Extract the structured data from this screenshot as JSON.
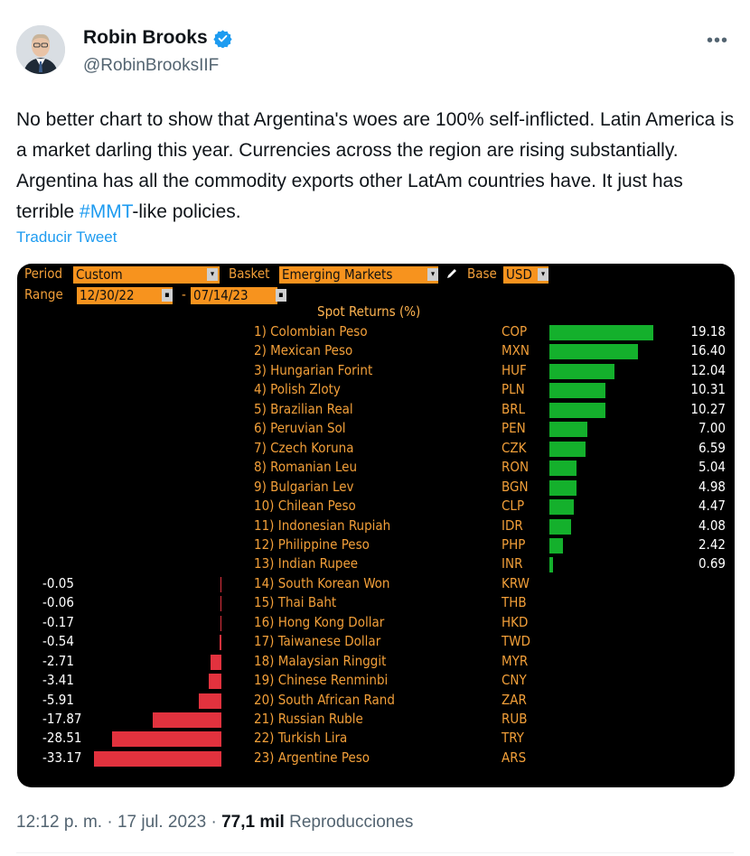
{
  "author": {
    "name": "Robin Brooks",
    "handle": "@RobinBrooksIIF"
  },
  "tweet": {
    "text_before": "No better chart to show that Argentina's woes are 100% self-inflicted. Latin America is a market darling this year. Currencies across the region are rising substantially. Argentina has all the commodity exports other LatAm countries have. It just has terrible ",
    "hashtag": "#MMT",
    "text_after": "-like policies.",
    "translate_label": "Traducir Tweet"
  },
  "terminal": {
    "period_label": "Period",
    "period_value": "Custom",
    "basket_label": "Basket",
    "basket_value": "Emerging Markets",
    "base_label": "Base",
    "base_value": "USD",
    "range_label": "Range",
    "range_start": "12/30/22",
    "range_sep": "-",
    "range_end": "07/14/23"
  },
  "chart_data": {
    "type": "bar",
    "title": "Spot Returns (%)",
    "orientation": "horizontal",
    "rows": [
      {
        "rank": "1)",
        "name": "Colombian Peso",
        "code": "COP",
        "value": 19.18,
        "label": "19.18"
      },
      {
        "rank": "2)",
        "name": "Mexican Peso",
        "code": "MXN",
        "value": 16.4,
        "label": "16.40"
      },
      {
        "rank": "3)",
        "name": "Hungarian Forint",
        "code": "HUF",
        "value": 12.04,
        "label": "12.04"
      },
      {
        "rank": "4)",
        "name": "Polish Zloty",
        "code": "PLN",
        "value": 10.31,
        "label": "10.31"
      },
      {
        "rank": "5)",
        "name": "Brazilian Real",
        "code": "BRL",
        "value": 10.27,
        "label": "10.27"
      },
      {
        "rank": "6)",
        "name": "Peruvian Sol",
        "code": "PEN",
        "value": 7.0,
        "label": "7.00"
      },
      {
        "rank": "7)",
        "name": "Czech Koruna",
        "code": "CZK",
        "value": 6.59,
        "label": "6.59"
      },
      {
        "rank": "8)",
        "name": "Romanian Leu",
        "code": "RON",
        "value": 5.04,
        "label": "5.04"
      },
      {
        "rank": "9)",
        "name": "Bulgarian Lev",
        "code": "BGN",
        "value": 4.98,
        "label": "4.98"
      },
      {
        "rank": "10)",
        "name": "Chilean Peso",
        "code": "CLP",
        "value": 4.47,
        "label": "4.47"
      },
      {
        "rank": "11)",
        "name": "Indonesian Rupiah",
        "code": "IDR",
        "value": 4.08,
        "label": "4.08"
      },
      {
        "rank": "12)",
        "name": "Philippine Peso",
        "code": "PHP",
        "value": 2.42,
        "label": "2.42"
      },
      {
        "rank": "13)",
        "name": "Indian Rupee",
        "code": "INR",
        "value": 0.69,
        "label": "0.69"
      },
      {
        "rank": "14)",
        "name": "South Korean Won",
        "code": "KRW",
        "value": -0.05,
        "label": "-0.05"
      },
      {
        "rank": "15)",
        "name": "Thai Baht",
        "code": "THB",
        "value": -0.06,
        "label": "-0.06"
      },
      {
        "rank": "16)",
        "name": "Hong Kong Dollar",
        "code": "HKD",
        "value": -0.17,
        "label": "-0.17"
      },
      {
        "rank": "17)",
        "name": "Taiwanese Dollar",
        "code": "TWD",
        "value": -0.54,
        "label": "-0.54"
      },
      {
        "rank": "18)",
        "name": "Malaysian Ringgit",
        "code": "MYR",
        "value": -2.71,
        "label": "-2.71"
      },
      {
        "rank": "19)",
        "name": "Chinese Renminbi",
        "code": "CNY",
        "value": -3.41,
        "label": "-3.41"
      },
      {
        "rank": "20)",
        "name": "South African Rand",
        "code": "ZAR",
        "value": -5.91,
        "label": "-5.91"
      },
      {
        "rank": "21)",
        "name": "Russian Ruble",
        "code": "RUB",
        "value": -17.87,
        "label": "-17.87"
      },
      {
        "rank": "22)",
        "name": "Turkish Lira",
        "code": "TRY",
        "value": -28.51,
        "label": "-28.51"
      },
      {
        "rank": "23)",
        "name": "Argentine Peso",
        "code": "ARS",
        "value": -33.17,
        "label": "-33.17"
      }
    ],
    "colors": {
      "positive": "#14b02c",
      "negative": "#e2323e",
      "labels": "#f29f39",
      "values": "#ffffff",
      "background": "#000000"
    }
  },
  "footer": {
    "time": "12:12 p. m.",
    "sep1": "·",
    "date": "17 jul. 2023",
    "sep2": "·",
    "views_count": "77,1 mil",
    "views_label": "Reproducciones"
  },
  "colors": {
    "link": "#1d9bf0",
    "verified": "#1d9bf0",
    "muted": "#536471"
  }
}
